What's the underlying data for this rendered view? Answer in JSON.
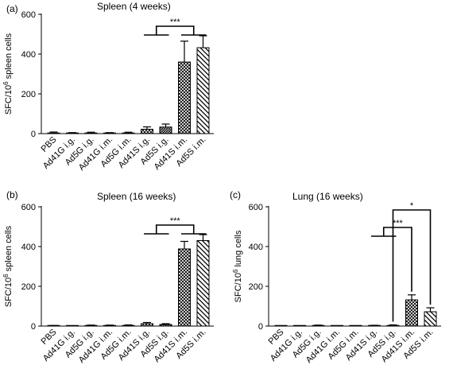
{
  "chart_data": [
    {
      "panel": "(a)",
      "type": "bar",
      "title": "Spleen (4 weeks)",
      "ylabel": "SFC/10^6 spleen cells",
      "ylabel_parts": {
        "pre": "SFC/10",
        "sup": "6",
        "post": " spleen cells"
      },
      "ylim": [
        0,
        600
      ],
      "yticks": [
        0,
        200,
        400,
        600
      ],
      "categories": [
        "PBS",
        "Ad41G i.g.",
        "Ad5G i.g.",
        "Ad41G i.m.",
        "Ad5G i.m.",
        "Ad41S i.g.",
        "Ad5S i.g.",
        "Ad41S i.m.",
        "Ad5S i.m."
      ],
      "values": [
        3,
        2,
        3,
        2,
        3,
        22,
        33,
        360,
        432
      ],
      "errors": [
        5,
        3,
        4,
        3,
        4,
        12,
        15,
        105,
        60
      ],
      "patterns": [
        "solid",
        "solid",
        "solid",
        "solid",
        "solid",
        "cross",
        "dense",
        "cross",
        "diag"
      ],
      "significance": [
        {
          "label": "***",
          "groups": [
            [
              5,
              6
            ],
            [
              7,
              8
            ]
          ]
        }
      ]
    },
    {
      "panel": "(b)",
      "type": "bar",
      "title": "Spleen (16 weeks)",
      "ylabel": "SFC/10^6 spleen cells",
      "ylabel_parts": {
        "pre": "SFC/10",
        "sup": "6",
        "post": " spleen cells"
      },
      "ylim": [
        0,
        600
      ],
      "yticks": [
        0,
        200,
        400,
        600
      ],
      "categories": [
        "PBS",
        "Ad41G i.g.",
        "Ad5G i.g.",
        "Ad41G i.m.",
        "Ad5G i.m.",
        "Ad41S i.g.",
        "Ad5S i.g.",
        "Ad41S i.m.",
        "Ad5S i.m."
      ],
      "values": [
        1,
        0,
        2,
        2,
        3,
        12,
        8,
        388,
        430
      ],
      "errors": [
        2,
        1,
        3,
        3,
        3,
        6,
        4,
        38,
        30
      ],
      "patterns": [
        "solid",
        "solid",
        "solid",
        "solid",
        "solid",
        "cross",
        "dense",
        "cross",
        "diag"
      ],
      "significance": [
        {
          "label": "***",
          "groups": [
            [
              5,
              6
            ],
            [
              7,
              8
            ]
          ]
        }
      ]
    },
    {
      "panel": "(c)",
      "type": "bar",
      "title": "Lung (16 weeks)",
      "ylabel": "SFC/10^6 lung cells",
      "ylabel_parts": {
        "pre": "SFC/10",
        "sup": "6",
        "post": " lung cells"
      },
      "ylim": [
        0,
        600
      ],
      "yticks": [
        0,
        200,
        400,
        600
      ],
      "categories": [
        "PBS",
        "Ad41G i.g.",
        "Ad5G i.g.",
        "Ad41G i.m.",
        "Ad5G i.m.",
        "Ad41S i.g.",
        "Ad5S i.g.",
        "Ad41S i.m.",
        "Ad5S i.m."
      ],
      "values": [
        0,
        0,
        2,
        0,
        0,
        2,
        3,
        132,
        72
      ],
      "errors": [
        1,
        1,
        3,
        1,
        1,
        2,
        3,
        25,
        20
      ],
      "patterns": [
        "solid",
        "solid",
        "solid",
        "solid",
        "solid",
        "cross",
        "dense",
        "cross",
        "diag"
      ],
      "significance": [
        {
          "label": "***",
          "groups": [
            [
              5,
              6
            ],
            [
              7
            ]
          ]
        },
        {
          "label": "*",
          "groups": [
            [
              6
            ],
            [
              8
            ]
          ]
        }
      ]
    }
  ]
}
